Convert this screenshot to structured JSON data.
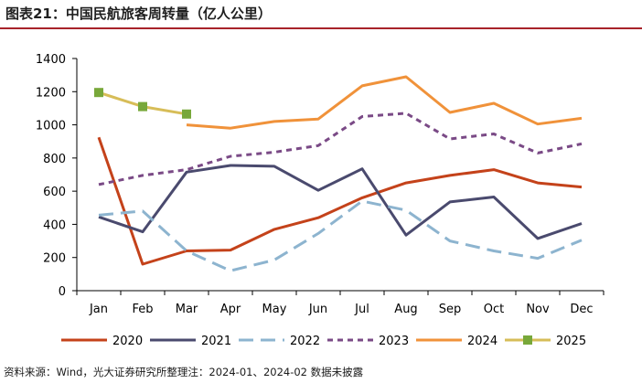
{
  "header": {
    "title": "图表21：中国民航旅客周转量（亿人公里）"
  },
  "footer": {
    "source": "资料来源：Wind，光大证券研究所整理注：2024-01、2024-02 数据未披露"
  },
  "chart_data": {
    "type": "line",
    "title": "中国民航旅客周转量（亿人公里）",
    "xlabel": "",
    "ylabel": "",
    "categories": [
      "Jan",
      "Feb",
      "Mar",
      "Apr",
      "May",
      "Jun",
      "Jul",
      "Aug",
      "Sep",
      "Oct",
      "Nov",
      "Dec"
    ],
    "ylim": [
      0,
      1400
    ],
    "yticks": [
      0,
      200,
      400,
      600,
      800,
      1000,
      1200,
      1400
    ],
    "legend_position": "bottom",
    "series": [
      {
        "name": "2020",
        "color": "#c4421a",
        "dash": "solid",
        "marker": "none",
        "values": [
          925,
          160,
          240,
          245,
          370,
          440,
          560,
          650,
          695,
          730,
          650,
          625
        ]
      },
      {
        "name": "2021",
        "color": "#4a4a6e",
        "dash": "solid",
        "marker": "none",
        "values": [
          445,
          355,
          715,
          755,
          750,
          605,
          735,
          335,
          535,
          565,
          315,
          405
        ]
      },
      {
        "name": "2022",
        "color": "#8db4cf",
        "dash": "long-dash",
        "marker": "none",
        "values": [
          455,
          480,
          240,
          120,
          185,
          345,
          540,
          485,
          300,
          240,
          195,
          305
        ]
      },
      {
        "name": "2023",
        "color": "#7a4a86",
        "dash": "short-dash",
        "marker": "none",
        "values": [
          640,
          695,
          730,
          810,
          835,
          875,
          1050,
          1070,
          915,
          945,
          830,
          885
        ]
      },
      {
        "name": "2024",
        "color": "#f0923a",
        "dash": "solid",
        "marker": "none",
        "values": [
          null,
          null,
          1000,
          980,
          1020,
          1035,
          1235,
          1290,
          1075,
          1130,
          1005,
          1040
        ]
      },
      {
        "name": "2025",
        "color": "#d7bd58",
        "dash": "solid",
        "marker": "square",
        "marker_color": "#78a83a",
        "values": [
          1195,
          1110,
          1065,
          null,
          null,
          null,
          null,
          null,
          null,
          null,
          null,
          null
        ]
      }
    ]
  }
}
